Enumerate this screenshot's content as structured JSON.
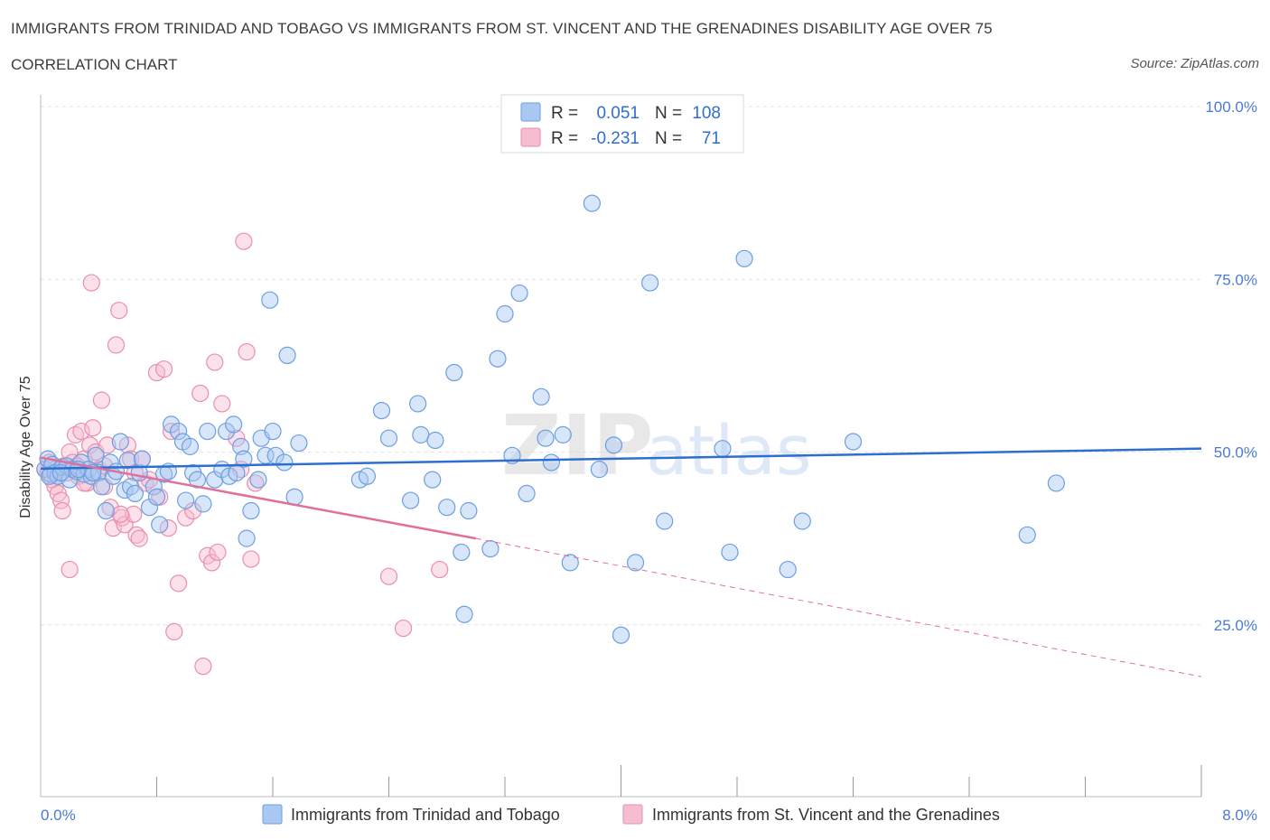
{
  "header": {
    "title": "IMMIGRANTS FROM TRINIDAD AND TOBAGO VS IMMIGRANTS FROM ST. VINCENT AND THE GRENADINES DISABILITY AGE OVER 75",
    "subtitle": "CORRELATION CHART",
    "source": "Source: ZipAtlas.com"
  },
  "watermark": "ZIPatlas",
  "colors": {
    "blue_fill": "#a9c8f2",
    "blue_stroke": "#6d9ee0",
    "blue_line": "#2d6fcf",
    "pink_fill": "#f6bcd0",
    "pink_stroke": "#ea8eae",
    "pink_line": "#e0709a",
    "tick_text": "#4a7bd0",
    "grid": "#e2e2e2"
  },
  "legend": {
    "rows": [
      {
        "r_label": "R =",
        "r_value": "0.051",
        "n_label": "N =",
        "n_value": "108"
      },
      {
        "r_label": "R =",
        "r_value": "-0.231",
        "n_label": "N =",
        "n_value": "71"
      }
    ]
  },
  "chart_data": {
    "type": "scatter",
    "title": "IMMIGRANTS FROM TRINIDAD AND TOBAGO VS IMMIGRANTS FROM ST. VINCENT AND THE GRENADINES DISABILITY AGE OVER 75",
    "xlabel": "",
    "ylabel": "Disability Age Over 75",
    "xlim": [
      0,
      8
    ],
    "ylim": [
      0,
      100
    ],
    "x_tick_labels": [
      "0.0%",
      "8.0%"
    ],
    "y_ticks": [
      25,
      50,
      75,
      100
    ],
    "y_tick_labels": [
      "25.0%",
      "50.0%",
      "75.0%",
      "100.0%"
    ],
    "grid": true,
    "legend_position": "top-center",
    "series": [
      {
        "name": "Immigrants from Trinidad and Tobago",
        "R": 0.051,
        "N": 108,
        "trend": {
          "x0": 0,
          "y0": 47.6,
          "x1": 8,
          "y1": 50.5
        },
        "points": [
          [
            0.03,
            47.5
          ],
          [
            0.05,
            49
          ],
          [
            0.07,
            46.8
          ],
          [
            0.08,
            48.2
          ],
          [
            0.1,
            47
          ],
          [
            0.12,
            46.5
          ],
          [
            0.15,
            47.8
          ],
          [
            0.18,
            48
          ],
          [
            0.2,
            46
          ],
          [
            0.22,
            47.5
          ],
          [
            0.25,
            47.2
          ],
          [
            0.28,
            48.5
          ],
          [
            0.3,
            46.8
          ],
          [
            0.33,
            47.5
          ],
          [
            0.35,
            46.5
          ],
          [
            0.38,
            49.5
          ],
          [
            0.4,
            47
          ],
          [
            0.42,
            45
          ],
          [
            0.45,
            41.5
          ],
          [
            0.48,
            48.5
          ],
          [
            0.5,
            46.5
          ],
          [
            0.55,
            51.5
          ],
          [
            0.58,
            44.5
          ],
          [
            0.6,
            48.8
          ],
          [
            0.62,
            45
          ],
          [
            0.65,
            44
          ],
          [
            0.68,
            47
          ],
          [
            0.7,
            49
          ],
          [
            0.75,
            42
          ],
          [
            0.78,
            45
          ],
          [
            0.8,
            43.5
          ],
          [
            0.82,
            39.5
          ],
          [
            0.85,
            46.8
          ],
          [
            0.88,
            47.2
          ],
          [
            0.9,
            54
          ],
          [
            0.95,
            53
          ],
          [
            0.98,
            51.5
          ],
          [
            1.0,
            43
          ],
          [
            1.03,
            50.8
          ],
          [
            1.05,
            47
          ],
          [
            1.08,
            46
          ],
          [
            1.12,
            42.5
          ],
          [
            1.15,
            53
          ],
          [
            1.2,
            46
          ],
          [
            1.25,
            47.5
          ],
          [
            1.28,
            53
          ],
          [
            1.3,
            46.5
          ],
          [
            1.33,
            54
          ],
          [
            1.35,
            47
          ],
          [
            1.38,
            50.8
          ],
          [
            1.4,
            49
          ],
          [
            1.42,
            37.5
          ],
          [
            1.45,
            41.5
          ],
          [
            1.5,
            46
          ],
          [
            1.52,
            52
          ],
          [
            1.55,
            49.5
          ],
          [
            1.58,
            72
          ],
          [
            1.6,
            53
          ],
          [
            1.62,
            49.5
          ],
          [
            1.68,
            48.5
          ],
          [
            1.7,
            64
          ],
          [
            1.75,
            43.5
          ],
          [
            1.78,
            51.3
          ],
          [
            2.2,
            46
          ],
          [
            2.25,
            46.5
          ],
          [
            2.35,
            56
          ],
          [
            2.4,
            52
          ],
          [
            2.55,
            43
          ],
          [
            2.6,
            57
          ],
          [
            2.62,
            52.5
          ],
          [
            2.7,
            46
          ],
          [
            2.72,
            51.7
          ],
          [
            2.8,
            42
          ],
          [
            2.85,
            61.5
          ],
          [
            2.9,
            35.5
          ],
          [
            2.92,
            26.5
          ],
          [
            2.95,
            41.5
          ],
          [
            3.1,
            36
          ],
          [
            3.15,
            63.5
          ],
          [
            3.2,
            70
          ],
          [
            3.25,
            49.5
          ],
          [
            3.3,
            73
          ],
          [
            3.35,
            44
          ],
          [
            3.45,
            58
          ],
          [
            3.48,
            52
          ],
          [
            3.52,
            48.5
          ],
          [
            3.6,
            52.5
          ],
          [
            3.65,
            34
          ],
          [
            3.8,
            86
          ],
          [
            3.85,
            47.5
          ],
          [
            3.95,
            51
          ],
          [
            4.0,
            23.5
          ],
          [
            4.1,
            34
          ],
          [
            4.2,
            74.5
          ],
          [
            4.3,
            40
          ],
          [
            4.7,
            50.5
          ],
          [
            4.75,
            35.5
          ],
          [
            4.85,
            78
          ],
          [
            5.15,
            33
          ],
          [
            5.25,
            40
          ],
          [
            5.6,
            51.5
          ],
          [
            6.8,
            38
          ],
          [
            7.0,
            45.5
          ],
          [
            0.06,
            46.5
          ],
          [
            0.14,
            47
          ],
          [
            0.26,
            47.5
          ],
          [
            0.36,
            47
          ],
          [
            0.52,
            47.2
          ]
        ],
        "point_style": "circle"
      },
      {
        "name": "Immigrants from St. Vincent and the Grenadines",
        "R": -0.231,
        "N": 71,
        "trend": {
          "x0": 0,
          "y0": 49.2,
          "x1": 3.0,
          "y1": 37.5,
          "dash_to_x": 8,
          "dash_to_y": 17.5
        },
        "points": [
          [
            0.03,
            47.5
          ],
          [
            0.06,
            48.5
          ],
          [
            0.08,
            46
          ],
          [
            0.1,
            45
          ],
          [
            0.12,
            44
          ],
          [
            0.14,
            43
          ],
          [
            0.16,
            48
          ],
          [
            0.18,
            47
          ],
          [
            0.2,
            50
          ],
          [
            0.22,
            48.5
          ],
          [
            0.24,
            52.5
          ],
          [
            0.26,
            46.5
          ],
          [
            0.28,
            53
          ],
          [
            0.3,
            49
          ],
          [
            0.32,
            45.5
          ],
          [
            0.34,
            51
          ],
          [
            0.36,
            53.5
          ],
          [
            0.38,
            50
          ],
          [
            0.4,
            47.5
          ],
          [
            0.42,
            57.5
          ],
          [
            0.44,
            45
          ],
          [
            0.46,
            51
          ],
          [
            0.48,
            42
          ],
          [
            0.5,
            39
          ],
          [
            0.52,
            65.5
          ],
          [
            0.54,
            70.5
          ],
          [
            0.56,
            40.5
          ],
          [
            0.58,
            39.5
          ],
          [
            0.6,
            51
          ],
          [
            0.62,
            49
          ],
          [
            0.64,
            41
          ],
          [
            0.66,
            38
          ],
          [
            0.68,
            37.5
          ],
          [
            0.72,
            45.5
          ],
          [
            0.75,
            46
          ],
          [
            0.8,
            61.5
          ],
          [
            0.82,
            43.5
          ],
          [
            0.85,
            62
          ],
          [
            0.88,
            39
          ],
          [
            0.9,
            53
          ],
          [
            0.92,
            24
          ],
          [
            0.95,
            31
          ],
          [
            1.0,
            40.5
          ],
          [
            1.05,
            41.5
          ],
          [
            1.1,
            58.5
          ],
          [
            1.12,
            19
          ],
          [
            1.15,
            35
          ],
          [
            1.18,
            34
          ],
          [
            1.2,
            63
          ],
          [
            1.22,
            35.5
          ],
          [
            1.25,
            57
          ],
          [
            1.35,
            52
          ],
          [
            1.38,
            47.5
          ],
          [
            1.4,
            80.5
          ],
          [
            1.42,
            64.5
          ],
          [
            1.45,
            34.5
          ],
          [
            1.48,
            45.5
          ],
          [
            2.4,
            32
          ],
          [
            2.5,
            24.5
          ],
          [
            2.75,
            33
          ],
          [
            0.35,
            74.5
          ],
          [
            0.2,
            33
          ],
          [
            0.15,
            41.5
          ],
          [
            0.44,
            48
          ],
          [
            0.55,
            41
          ],
          [
            0.1,
            47.5
          ],
          [
            0.25,
            48
          ],
          [
            0.3,
            45.5
          ],
          [
            0.65,
            47
          ],
          [
            0.7,
            49
          ],
          [
            0.05,
            47
          ]
        ],
        "point_style": "circle"
      }
    ]
  },
  "bottom_legend": {
    "items": [
      {
        "label": "Immigrants from Trinidad and Tobago"
      },
      {
        "label": "Immigrants from St. Vincent and the Grenadines"
      }
    ]
  }
}
